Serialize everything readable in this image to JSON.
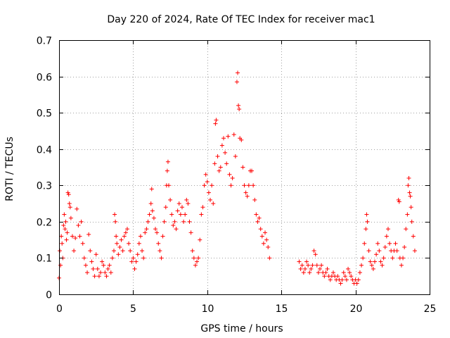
{
  "chart_data": {
    "type": "scatter",
    "title": "Day 220 of 2024, Rate Of TEC Index for receiver mac1",
    "xlabel": "GPS time / hours",
    "ylabel": "ROTI / TECUs",
    "xlim": [
      0,
      25
    ],
    "ylim": [
      0,
      0.7
    ],
    "xticks": [
      0,
      5,
      10,
      15,
      20,
      25
    ],
    "xtick_labels": [
      "0",
      "5",
      "10",
      "15",
      "20",
      "25"
    ],
    "yticks": [
      0,
      0.1,
      0.2,
      0.3,
      0.4,
      0.5,
      0.6,
      0.7
    ],
    "ytick_labels": [
      "0",
      "0.1",
      "0.2",
      "0.3",
      "0.4",
      "0.5",
      "0.6",
      "0.7"
    ],
    "grid": true,
    "marker": "+",
    "color": "#ff0000",
    "data_gap_hours": [
      14.2,
      16.2
    ],
    "series": [
      {
        "name": "ROTI",
        "points": [
          [
            0.0,
            0.045
          ],
          [
            0.05,
            0.12
          ],
          [
            0.1,
            0.08
          ],
          [
            0.15,
            0.16
          ],
          [
            0.2,
            0.14
          ],
          [
            0.25,
            0.1
          ],
          [
            0.3,
            0.19
          ],
          [
            0.35,
            0.22
          ],
          [
            0.4,
            0.18
          ],
          [
            0.45,
            0.2
          ],
          [
            0.5,
            0.15
          ],
          [
            0.55,
            0.17
          ],
          [
            0.6,
            0.28
          ],
          [
            0.65,
            0.275
          ],
          [
            0.7,
            0.25
          ],
          [
            0.75,
            0.24
          ],
          [
            0.8,
            0.21
          ],
          [
            0.9,
            0.16
          ],
          [
            1.0,
            0.12
          ],
          [
            1.1,
            0.155
          ],
          [
            1.2,
            0.235
          ],
          [
            1.3,
            0.19
          ],
          [
            1.4,
            0.16
          ],
          [
            1.5,
            0.2
          ],
          [
            1.6,
            0.14
          ],
          [
            1.7,
            0.1
          ],
          [
            1.8,
            0.08
          ],
          [
            1.9,
            0.06
          ],
          [
            2.0,
            0.165
          ],
          [
            2.1,
            0.12
          ],
          [
            2.2,
            0.09
          ],
          [
            2.3,
            0.07
          ],
          [
            2.4,
            0.05
          ],
          [
            2.5,
            0.11
          ],
          [
            2.6,
            0.07
          ],
          [
            2.7,
            0.05
          ],
          [
            2.8,
            0.06
          ],
          [
            2.9,
            0.09
          ],
          [
            3.0,
            0.08
          ],
          [
            3.1,
            0.06
          ],
          [
            3.2,
            0.05
          ],
          [
            3.3,
            0.07
          ],
          [
            3.4,
            0.08
          ],
          [
            3.5,
            0.06
          ],
          [
            3.6,
            0.1
          ],
          [
            3.7,
            0.12
          ],
          [
            3.75,
            0.22
          ],
          [
            3.8,
            0.2
          ],
          [
            3.85,
            0.16
          ],
          [
            3.9,
            0.14
          ],
          [
            4.0,
            0.11
          ],
          [
            4.1,
            0.13
          ],
          [
            4.2,
            0.15
          ],
          [
            4.3,
            0.12
          ],
          [
            4.4,
            0.16
          ],
          [
            4.5,
            0.17
          ],
          [
            4.6,
            0.18
          ],
          [
            4.7,
            0.14
          ],
          [
            4.8,
            0.12
          ],
          [
            4.9,
            0.09
          ],
          [
            5.0,
            0.1
          ],
          [
            5.1,
            0.07
          ],
          [
            5.2,
            0.09
          ],
          [
            5.3,
            0.11
          ],
          [
            5.4,
            0.14
          ],
          [
            5.5,
            0.16
          ],
          [
            5.6,
            0.12
          ],
          [
            5.7,
            0.1
          ],
          [
            5.8,
            0.17
          ],
          [
            5.9,
            0.18
          ],
          [
            6.0,
            0.2
          ],
          [
            6.1,
            0.22
          ],
          [
            6.2,
            0.25
          ],
          [
            6.25,
            0.29
          ],
          [
            6.3,
            0.23
          ],
          [
            6.4,
            0.21
          ],
          [
            6.5,
            0.18
          ],
          [
            6.6,
            0.17
          ],
          [
            6.7,
            0.14
          ],
          [
            6.8,
            0.12
          ],
          [
            6.9,
            0.1
          ],
          [
            7.0,
            0.16
          ],
          [
            7.1,
            0.2
          ],
          [
            7.2,
            0.24
          ],
          [
            7.25,
            0.3
          ],
          [
            7.3,
            0.34
          ],
          [
            7.35,
            0.365
          ],
          [
            7.4,
            0.3
          ],
          [
            7.5,
            0.26
          ],
          [
            7.6,
            0.22
          ],
          [
            7.7,
            0.19
          ],
          [
            7.8,
            0.2
          ],
          [
            7.9,
            0.18
          ],
          [
            8.0,
            0.23
          ],
          [
            8.1,
            0.25
          ],
          [
            8.2,
            0.22
          ],
          [
            8.3,
            0.24
          ],
          [
            8.4,
            0.2
          ],
          [
            8.5,
            0.22
          ],
          [
            8.6,
            0.26
          ],
          [
            8.7,
            0.25
          ],
          [
            8.8,
            0.2
          ],
          [
            8.9,
            0.17
          ],
          [
            9.0,
            0.12
          ],
          [
            9.1,
            0.1
          ],
          [
            9.2,
            0.08
          ],
          [
            9.3,
            0.09
          ],
          [
            9.4,
            0.1
          ],
          [
            9.5,
            0.15
          ],
          [
            9.6,
            0.22
          ],
          [
            9.7,
            0.24
          ],
          [
            9.8,
            0.3
          ],
          [
            9.9,
            0.33
          ],
          [
            10.0,
            0.31
          ],
          [
            10.1,
            0.28
          ],
          [
            10.2,
            0.26
          ],
          [
            10.3,
            0.3
          ],
          [
            10.4,
            0.25
          ],
          [
            10.5,
            0.36
          ],
          [
            10.55,
            0.47
          ],
          [
            10.6,
            0.48
          ],
          [
            10.7,
            0.38
          ],
          [
            10.8,
            0.34
          ],
          [
            10.9,
            0.35
          ],
          [
            11.0,
            0.41
          ],
          [
            11.1,
            0.43
          ],
          [
            11.2,
            0.39
          ],
          [
            11.3,
            0.36
          ],
          [
            11.4,
            0.435
          ],
          [
            11.5,
            0.33
          ],
          [
            11.6,
            0.3
          ],
          [
            11.7,
            0.32
          ],
          [
            11.8,
            0.44
          ],
          [
            11.9,
            0.38
          ],
          [
            12.0,
            0.585
          ],
          [
            12.05,
            0.61
          ],
          [
            12.1,
            0.52
          ],
          [
            12.15,
            0.51
          ],
          [
            12.2,
            0.43
          ],
          [
            12.3,
            0.425
          ],
          [
            12.4,
            0.35
          ],
          [
            12.5,
            0.3
          ],
          [
            12.6,
            0.28
          ],
          [
            12.7,
            0.27
          ],
          [
            12.8,
            0.3
          ],
          [
            12.9,
            0.34
          ],
          [
            13.0,
            0.34
          ],
          [
            13.1,
            0.3
          ],
          [
            13.2,
            0.26
          ],
          [
            13.3,
            0.22
          ],
          [
            13.4,
            0.2
          ],
          [
            13.5,
            0.21
          ],
          [
            13.6,
            0.18
          ],
          [
            13.7,
            0.16
          ],
          [
            13.8,
            0.14
          ],
          [
            13.9,
            0.17
          ],
          [
            14.0,
            0.15
          ],
          [
            14.1,
            0.13
          ],
          [
            14.2,
            0.1
          ],
          [
            16.2,
            0.09
          ],
          [
            16.3,
            0.07
          ],
          [
            16.4,
            0.08
          ],
          [
            16.5,
            0.06
          ],
          [
            16.6,
            0.07
          ],
          [
            16.7,
            0.09
          ],
          [
            16.8,
            0.08
          ],
          [
            16.9,
            0.06
          ],
          [
            17.0,
            0.07
          ],
          [
            17.1,
            0.08
          ],
          [
            17.2,
            0.12
          ],
          [
            17.3,
            0.11
          ],
          [
            17.4,
            0.08
          ],
          [
            17.5,
            0.06
          ],
          [
            17.6,
            0.07
          ],
          [
            17.7,
            0.08
          ],
          [
            17.8,
            0.06
          ],
          [
            17.9,
            0.05
          ],
          [
            18.0,
            0.06
          ],
          [
            18.1,
            0.07
          ],
          [
            18.2,
            0.05
          ],
          [
            18.3,
            0.04
          ],
          [
            18.4,
            0.05
          ],
          [
            18.5,
            0.06
          ],
          [
            18.6,
            0.05
          ],
          [
            18.7,
            0.04
          ],
          [
            18.8,
            0.05
          ],
          [
            18.9,
            0.04
          ],
          [
            19.0,
            0.03
          ],
          [
            19.1,
            0.04
          ],
          [
            19.2,
            0.06
          ],
          [
            19.3,
            0.05
          ],
          [
            19.4,
            0.04
          ],
          [
            19.5,
            0.07
          ],
          [
            19.6,
            0.06
          ],
          [
            19.7,
            0.05
          ],
          [
            19.8,
            0.04
          ],
          [
            19.9,
            0.03
          ],
          [
            20.0,
            0.04
          ],
          [
            20.1,
            0.03
          ],
          [
            20.2,
            0.04
          ],
          [
            20.3,
            0.06
          ],
          [
            20.4,
            0.08
          ],
          [
            20.5,
            0.1
          ],
          [
            20.6,
            0.14
          ],
          [
            20.7,
            0.18
          ],
          [
            20.75,
            0.22
          ],
          [
            20.8,
            0.2
          ],
          [
            20.9,
            0.12
          ],
          [
            21.0,
            0.09
          ],
          [
            21.1,
            0.08
          ],
          [
            21.2,
            0.07
          ],
          [
            21.3,
            0.09
          ],
          [
            21.4,
            0.11
          ],
          [
            21.5,
            0.14
          ],
          [
            21.6,
            0.12
          ],
          [
            21.7,
            0.09
          ],
          [
            21.8,
            0.08
          ],
          [
            21.9,
            0.1
          ],
          [
            22.0,
            0.13
          ],
          [
            22.1,
            0.16
          ],
          [
            22.2,
            0.18
          ],
          [
            22.3,
            0.14
          ],
          [
            22.4,
            0.12
          ],
          [
            22.5,
            0.1
          ],
          [
            22.6,
            0.12
          ],
          [
            22.7,
            0.14
          ],
          [
            22.8,
            0.12
          ],
          [
            22.9,
            0.26
          ],
          [
            22.95,
            0.255
          ],
          [
            23.0,
            0.1
          ],
          [
            23.1,
            0.08
          ],
          [
            23.2,
            0.1
          ],
          [
            23.3,
            0.13
          ],
          [
            23.4,
            0.18
          ],
          [
            23.5,
            0.22
          ],
          [
            23.55,
            0.3
          ],
          [
            23.6,
            0.32
          ],
          [
            23.65,
            0.28
          ],
          [
            23.7,
            0.27
          ],
          [
            23.75,
            0.24
          ],
          [
            23.8,
            0.2
          ],
          [
            23.9,
            0.16
          ],
          [
            24.0,
            0.12
          ]
        ]
      }
    ]
  }
}
